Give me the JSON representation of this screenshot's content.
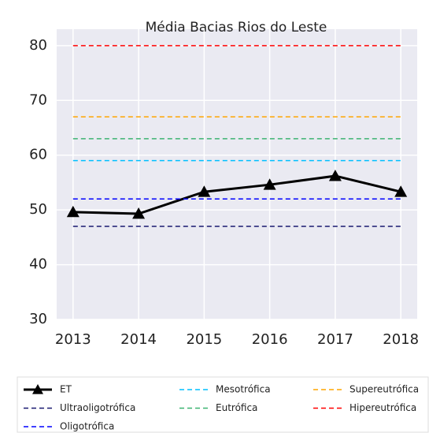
{
  "chart_data": {
    "type": "line",
    "title": "Média Bacias Rios do Leste",
    "x": [
      2013,
      2014,
      2015,
      2016,
      2017,
      2018
    ],
    "xlim": [
      2012.75,
      2018.25
    ],
    "xticks": [
      2013,
      2014,
      2015,
      2016,
      2017,
      2018
    ],
    "ylim": [
      30,
      83
    ],
    "yticks": [
      30,
      40,
      50,
      60,
      70,
      80
    ],
    "grid": true,
    "legend": "bottom",
    "series": [
      {
        "name": "ET",
        "color": "#000000",
        "values": [
          49.6,
          49.3,
          53.3,
          54.6,
          56.2,
          53.3
        ]
      },
      {
        "name": "Ultraoligotrófica",
        "color": "#191970",
        "values": [
          47,
          47,
          47,
          47,
          47,
          47
        ]
      },
      {
        "name": "Oligotrófica",
        "color": "#0000ff",
        "values": [
          52,
          52,
          52,
          52,
          52,
          52
        ]
      },
      {
        "name": "Mesotrófica",
        "color": "#00bfff",
        "values": [
          59,
          59,
          59,
          59,
          59,
          59
        ]
      },
      {
        "name": "Eutrófica",
        "color": "#3cb371",
        "values": [
          63,
          63,
          63,
          63,
          63,
          63
        ]
      },
      {
        "name": "Supereutrófica",
        "color": "#ffa500",
        "values": [
          67,
          67,
          67,
          67,
          67,
          67
        ]
      },
      {
        "name": "Hipereutrófica",
        "color": "#ff0000",
        "values": [
          80,
          80,
          80,
          80,
          80,
          80
        ]
      }
    ]
  }
}
